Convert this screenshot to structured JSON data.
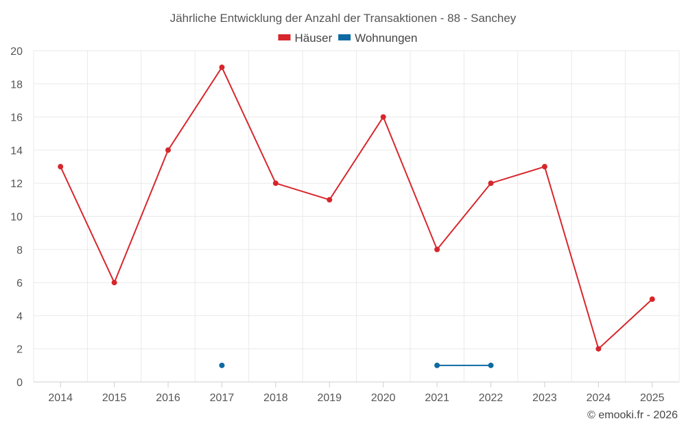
{
  "chart_data": {
    "type": "line",
    "title": "Jährliche Entwicklung der Anzahl der Transaktionen - 88 - Sanchey",
    "categories": [
      "2014",
      "2015",
      "2016",
      "2017",
      "2018",
      "2019",
      "2020",
      "2021",
      "2022",
      "2023",
      "2024",
      "2025"
    ],
    "series": [
      {
        "name": "Häuser",
        "color": "#d7262b",
        "values": [
          13,
          6,
          14,
          19,
          12,
          11,
          16,
          8,
          12,
          13,
          2,
          5
        ]
      },
      {
        "name": "Wohnungen",
        "color": "#0d6aa3",
        "values": [
          null,
          null,
          null,
          1,
          null,
          null,
          null,
          1,
          1,
          null,
          null,
          null
        ]
      }
    ],
    "ylim": [
      0,
      20
    ],
    "yticks": [
      0,
      2,
      4,
      6,
      8,
      10,
      12,
      14,
      16,
      18,
      20
    ],
    "grid": true,
    "legend_position": "top-center"
  },
  "credit": "© emooki.fr - 2026"
}
